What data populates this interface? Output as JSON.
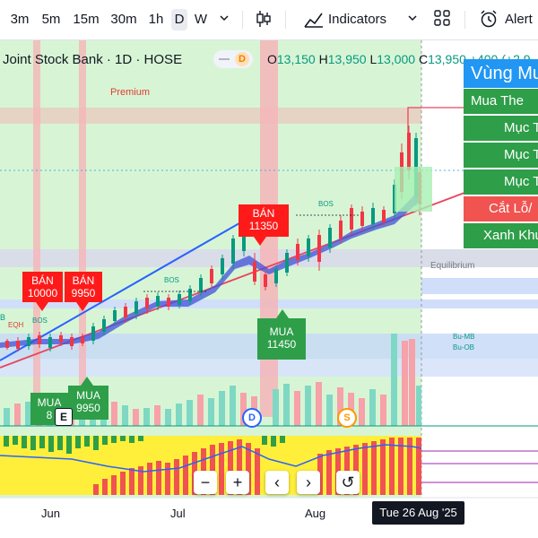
{
  "toolbar": {
    "intervals": [
      "3m",
      "5m",
      "15m",
      "30m",
      "1h",
      "D",
      "W"
    ],
    "selected_interval": "D",
    "indicators_label": "Indicators",
    "alert_label": "Alert"
  },
  "legend": {
    "title": "Joint Stock Bank · 1D · HOSE",
    "badge": "D",
    "o_label": "O",
    "o_value": "13,150",
    "h_label": "H",
    "h_value": "13,950",
    "l_label": "L",
    "l_value": "13,000",
    "c_label": "C",
    "c_value": "13,950",
    "change": "+400 (+2.9"
  },
  "zone_panel": {
    "header": "Vùng Mu",
    "items": [
      {
        "label": "Mua The",
        "color": "#2e9e49"
      },
      {
        "label": "Mục T",
        "color": "#2e9e49"
      },
      {
        "label": "Mục T",
        "color": "#2e9e49"
      },
      {
        "label": "Mục T",
        "color": "#2e9e49"
      },
      {
        "label": "Cắt Lỗ/",
        "color": "#f05350"
      },
      {
        "label": "Xanh Khu",
        "color": "#2e9e49"
      }
    ]
  },
  "annotations": {
    "premium": "Premium",
    "equilibrium": "Equilibrium",
    "bos": "BOS",
    "eqh": "EQH",
    "b": "B",
    "bu_mb": "Bu-MB",
    "bu_ob": "Bu-OB"
  },
  "signals": [
    {
      "kind": "sell",
      "title": "BÁN",
      "price": "10000"
    },
    {
      "kind": "sell",
      "title": "BÁN",
      "price": "9950"
    },
    {
      "kind": "sell",
      "title": "BÁN",
      "price": "11350"
    },
    {
      "kind": "buy",
      "title": "MUA",
      "price": "11450"
    },
    {
      "kind": "buy",
      "title": "MUA",
      "price": "9950"
    },
    {
      "kind": "buy",
      "title": "MUA",
      "price": "8"
    }
  ],
  "events": {
    "e": "E",
    "d": "D",
    "s": "S"
  },
  "zoom_controls": {
    "zoom_out": "−",
    "zoom_in": "+",
    "scroll_left": "‹",
    "scroll_right": "›",
    "reset": "↺"
  },
  "x_axis": {
    "labels": [
      "Jun",
      "Jul",
      "Aug"
    ],
    "crosshair_date": "Tue 26 Aug '25"
  },
  "colors": {
    "up": "#089981",
    "down": "#f23645",
    "buy": "#2e9e49",
    "sell": "#ff1a1a",
    "accent_blue": "#2962ff"
  }
}
